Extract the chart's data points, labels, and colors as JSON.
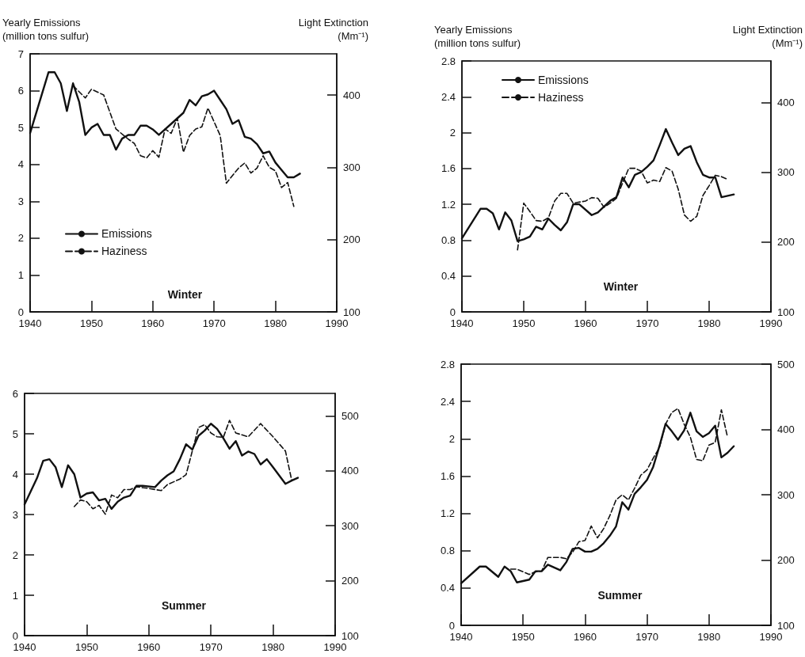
{
  "chart_data": [
    {
      "type": "line",
      "title": "Winter",
      "ylabel": "Yearly Emissions\n(million tons sulfur)",
      "y2label": "Light Extinction\n(Mm⁻¹)",
      "xlim": [
        1940,
        1990
      ],
      "xticks": [
        1940,
        1950,
        1960,
        1970,
        1980,
        1990
      ],
      "ylim": [
        0,
        7
      ],
      "yticks": [
        0,
        1,
        2,
        3,
        4,
        5,
        6,
        7
      ],
      "y2lim": [
        100,
        457
      ],
      "y2ticks": [
        100,
        200,
        300,
        400
      ],
      "grid": false,
      "legend": "left",
      "marker": "none",
      "series": [
        {
          "name": "Emissions",
          "color": "#111111",
          "line_style": "solid",
          "x": [
            1940,
            1943,
            1944,
            1945,
            1946,
            1947,
            1948,
            1949,
            1950,
            1951,
            1952,
            1953,
            1954,
            1955,
            1956,
            1957,
            1958,
            1959,
            1960,
            1961,
            1962,
            1963,
            1964,
            1965,
            1966,
            1967,
            1968,
            1969,
            1970,
            1971,
            1972,
            1973,
            1974,
            1975,
            1976,
            1977,
            1978,
            1979,
            1980,
            1981,
            1982,
            1983,
            1984
          ],
          "values": [
            4.85,
            6.5,
            6.5,
            6.2,
            5.45,
            6.2,
            5.7,
            4.8,
            5.0,
            5.1,
            4.8,
            4.8,
            4.4,
            4.7,
            4.8,
            4.8,
            5.05,
            5.05,
            4.95,
            4.8,
            4.95,
            5.1,
            5.25,
            5.4,
            5.75,
            5.6,
            5.85,
            5.9,
            6.0,
            5.75,
            5.5,
            5.1,
            5.2,
            4.75,
            4.7,
            4.55,
            4.3,
            4.35,
            4.05,
            3.85,
            3.65,
            3.65,
            3.75
          ]
        },
        {
          "name": "Haziness",
          "color": "#111111",
          "line_style": "dashed",
          "axis": "y2",
          "x": [
            1947,
            1949,
            1950,
            1952,
            1954,
            1956,
            1957,
            1958,
            1959,
            1960,
            1961,
            1962,
            1963,
            1964,
            1965,
            1966,
            1967,
            1968,
            1969,
            1971,
            1972,
            1974,
            1975,
            1976,
            1977,
            1978,
            1979,
            1980,
            1981,
            1982,
            1983
          ],
          "values": [
            413,
            396,
            408,
            400,
            353,
            339,
            333,
            316,
            313,
            323,
            314,
            353,
            347,
            368,
            321,
            344,
            353,
            356,
            382,
            344,
            278,
            299,
            306,
            292,
            299,
            316,
            300,
            295,
            272,
            279,
            246
          ]
        }
      ]
    },
    {
      "type": "line",
      "title": "Summer",
      "xlim": [
        1940,
        1990
      ],
      "xticks": [
        1940,
        1950,
        1960,
        1970,
        1980,
        1990
      ],
      "ylim": [
        0,
        6
      ],
      "yticks": [
        0,
        1,
        2,
        3,
        4,
        5,
        6
      ],
      "y2lim": [
        100,
        541
      ],
      "y2ticks": [
        100,
        200,
        300,
        400,
        500
      ],
      "grid": false,
      "marker": "none",
      "series": [
        {
          "color": "#111111",
          "line_style": "solid",
          "x": [
            1940,
            1942,
            1943,
            1944,
            1945,
            1946,
            1947,
            1948,
            1949,
            1950,
            1951,
            1952,
            1953,
            1954,
            1955,
            1956,
            1957,
            1958,
            1959,
            1961,
            1962,
            1963,
            1964,
            1965,
            1966,
            1967,
            1968,
            1969,
            1970,
            1971,
            1972,
            1973,
            1974,
            1975,
            1976,
            1977,
            1978,
            1979,
            1980,
            1982,
            1983,
            1984
          ],
          "values": [
            3.25,
            3.9,
            4.33,
            4.37,
            4.17,
            3.68,
            4.22,
            4.0,
            3.42,
            3.52,
            3.55,
            3.35,
            3.39,
            3.14,
            3.32,
            3.42,
            3.47,
            3.71,
            3.71,
            3.68,
            3.84,
            3.97,
            4.07,
            4.37,
            4.74,
            4.61,
            4.95,
            5.08,
            5.25,
            5.12,
            4.89,
            4.63,
            4.82,
            4.46,
            4.56,
            4.5,
            4.24,
            4.37,
            4.17,
            3.76,
            3.84,
            3.91
          ]
        },
        {
          "color": "#111111",
          "line_style": "dashed",
          "axis": "y2",
          "x": [
            1948,
            1949,
            1950,
            1951,
            1952,
            1953,
            1954,
            1955,
            1956,
            1957,
            1958,
            1960,
            1962,
            1963,
            1965,
            1966,
            1967,
            1968,
            1969,
            1970,
            1971,
            1972,
            1973,
            1974,
            1976,
            1978,
            1980,
            1982,
            1983
          ],
          "values": [
            335,
            347,
            344,
            331,
            337,
            321,
            356,
            351,
            366,
            366,
            371,
            368,
            364,
            375,
            385,
            393,
            436,
            479,
            484,
            469,
            462,
            461,
            492,
            469,
            462,
            486,
            462,
            436,
            383
          ]
        }
      ]
    },
    {
      "type": "line",
      "title": "Winter",
      "ylabel": "Yearly Emissions\n(million tons sulfur)",
      "y2label": "Light Extinction\n(Mm⁻¹)",
      "xlim": [
        1940,
        1990
      ],
      "xticks": [
        1940,
        1950,
        1960,
        1970,
        1980,
        1990
      ],
      "ylim": [
        0,
        2.8
      ],
      "yticks": [
        0,
        0.4,
        0.8,
        1.2,
        1.6,
        2,
        2.4,
        2.8
      ],
      "y2lim": [
        100,
        460
      ],
      "y2ticks": [
        100,
        200,
        300,
        400
      ],
      "grid": false,
      "legend": "top left",
      "marker": "none",
      "series": [
        {
          "name": "Emissions",
          "color": "#111111",
          "line_style": "solid",
          "x": [
            1940,
            1943,
            1944,
            1945,
            1946,
            1947,
            1948,
            1949,
            1950,
            1951,
            1952,
            1953,
            1954,
            1955,
            1956,
            1957,
            1958,
            1959,
            1961,
            1962,
            1964,
            1965,
            1966,
            1967,
            1968,
            1969,
            1970,
            1971,
            1972,
            1973,
            1974,
            1975,
            1976,
            1977,
            1978,
            1979,
            1980,
            1981,
            1982,
            1984
          ],
          "values": [
            0.82,
            1.15,
            1.15,
            1.1,
            0.92,
            1.11,
            1.02,
            0.79,
            0.81,
            0.84,
            0.95,
            0.92,
            1.04,
            0.97,
            0.91,
            1.0,
            1.2,
            1.2,
            1.08,
            1.11,
            1.24,
            1.28,
            1.5,
            1.39,
            1.53,
            1.56,
            1.62,
            1.69,
            1.86,
            2.04,
            1.89,
            1.75,
            1.82,
            1.85,
            1.67,
            1.53,
            1.5,
            1.5,
            1.28,
            1.31
          ]
        },
        {
          "name": "Haziness",
          "color": "#111111",
          "line_style": "dashed",
          "axis": "y2",
          "x": [
            1949,
            1950,
            1951,
            1952,
            1953,
            1954,
            1955,
            1956,
            1957,
            1958,
            1960,
            1961,
            1962,
            1963,
            1964,
            1965,
            1966,
            1967,
            1968,
            1969,
            1970,
            1971,
            1972,
            1973,
            1974,
            1975,
            1976,
            1977,
            1978,
            1979,
            1980,
            1981,
            1982,
            1983
          ],
          "values": [
            189,
            256,
            244,
            231,
            230,
            235,
            259,
            270,
            270,
            256,
            259,
            264,
            263,
            250,
            256,
            263,
            285,
            306,
            306,
            302,
            285,
            289,
            287,
            307,
            302,
            276,
            239,
            230,
            237,
            267,
            281,
            296,
            294,
            290
          ]
        }
      ]
    },
    {
      "type": "line",
      "title": "Summer",
      "xlim": [
        1940,
        1990
      ],
      "xticks": [
        1940,
        1950,
        1960,
        1970,
        1980,
        1990
      ],
      "ylim": [
        0,
        2.8
      ],
      "yticks": [
        0,
        0.4,
        0.8,
        1.2,
        1.6,
        2,
        2.4,
        2.8
      ],
      "y2lim": [
        100,
        500
      ],
      "y2ticks": [
        100,
        200,
        300,
        400,
        500
      ],
      "grid": false,
      "marker": "none",
      "series": [
        {
          "color": "#111111",
          "line_style": "solid",
          "x": [
            1940,
            1943,
            1944,
            1946,
            1947,
            1948,
            1949,
            1951,
            1952,
            1953,
            1954,
            1956,
            1957,
            1958,
            1959,
            1960,
            1961,
            1962,
            1963,
            1964,
            1965,
            1966,
            1967,
            1968,
            1969,
            1970,
            1971,
            1972,
            1973,
            1974,
            1975,
            1976,
            1977,
            1978,
            1979,
            1980,
            1981,
            1982,
            1983,
            1984
          ],
          "values": [
            0.45,
            0.63,
            0.63,
            0.52,
            0.63,
            0.58,
            0.46,
            0.49,
            0.58,
            0.58,
            0.65,
            0.59,
            0.68,
            0.82,
            0.83,
            0.79,
            0.79,
            0.82,
            0.88,
            0.96,
            1.06,
            1.32,
            1.24,
            1.41,
            1.48,
            1.56,
            1.7,
            1.92,
            2.16,
            2.08,
            1.99,
            2.09,
            2.28,
            2.08,
            2.02,
            2.06,
            2.14,
            1.8,
            1.85,
            1.92
          ]
        },
        {
          "color": "#111111",
          "line_style": "dashed",
          "axis": "y2",
          "x": [
            1948,
            1949,
            1951,
            1952,
            1953,
            1954,
            1956,
            1957,
            1958,
            1959,
            1960,
            1961,
            1962,
            1963,
            1964,
            1965,
            1966,
            1967,
            1968,
            1969,
            1970,
            1971,
            1972,
            1973,
            1974,
            1975,
            1976,
            1977,
            1978,
            1979,
            1980,
            1981,
            1982,
            1983
          ],
          "values": [
            186,
            186,
            178,
            182,
            183,
            204,
            204,
            202,
            212,
            228,
            230,
            252,
            234,
            248,
            268,
            292,
            300,
            292,
            310,
            330,
            338,
            356,
            372,
            408,
            426,
            432,
            408,
            388,
            354,
            352,
            376,
            380,
            430,
            388
          ]
        }
      ]
    }
  ]
}
